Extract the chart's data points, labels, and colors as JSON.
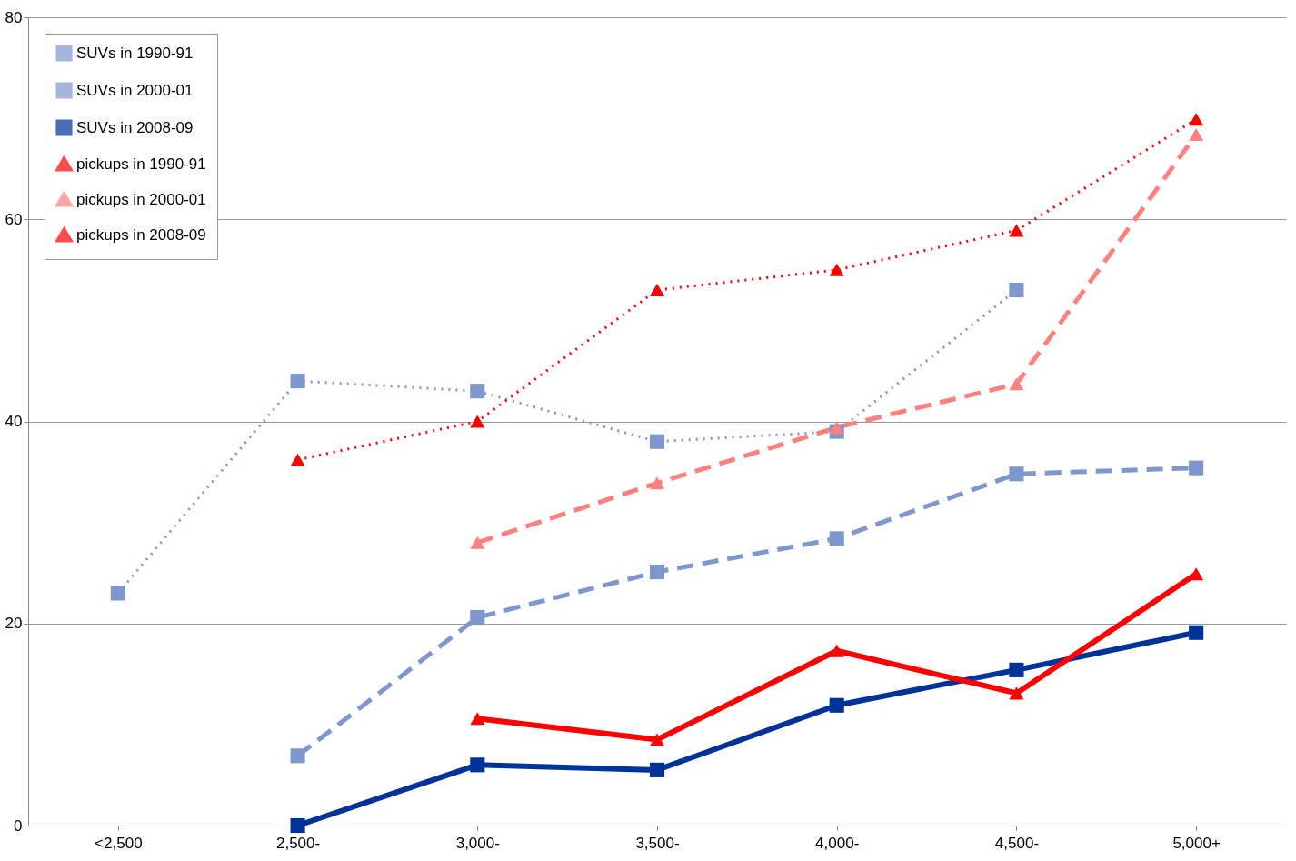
{
  "chart_data": {
    "type": "line",
    "categories": [
      "<2,500",
      "2,500-",
      "3,000-",
      "3,500-",
      "4,000-",
      "4,500-",
      "5,000+"
    ],
    "series": [
      {
        "name": "SUVs in 1990-91",
        "color": "#7f97cf",
        "marker": "square",
        "line_style": "dotted",
        "values": [
          23,
          44,
          43,
          38,
          39,
          53,
          null
        ]
      },
      {
        "name": "SUVs in 2000-01",
        "color": "#7f97cf",
        "marker": "square",
        "line_style": "dashed",
        "values": [
          null,
          6.9,
          20.6,
          25.1,
          28.4,
          34.8,
          35.4
        ]
      },
      {
        "name": "SUVs in 2008-09",
        "color": "#003399",
        "marker": "square",
        "line_style": "solid",
        "values": [
          null,
          0,
          6.0,
          5.5,
          11.9,
          15.4,
          19.1
        ]
      },
      {
        "name": "pickups in 1990-91",
        "color": "#ff0000",
        "marker": "triangle",
        "line_style": "dotted",
        "values": [
          null,
          36.2,
          40,
          53,
          55,
          58.9,
          69.9
        ]
      },
      {
        "name": "pickups in 2000-01",
        "color": "#ff8080",
        "marker": "triangle",
        "line_style": "dashed",
        "values": [
          null,
          null,
          28,
          33.9,
          39.4,
          43.7,
          68.4
        ]
      },
      {
        "name": "pickups in 2008-09",
        "color": "#ff0000",
        "marker": "triangle",
        "line_style": "solid",
        "values": [
          null,
          null,
          10.6,
          8.5,
          17.3,
          13.1,
          24.9
        ]
      }
    ],
    "ylim": [
      0,
      80
    ],
    "yticks": [
      0,
      20,
      40,
      60,
      80
    ],
    "grid": "y",
    "legend": "top left"
  }
}
